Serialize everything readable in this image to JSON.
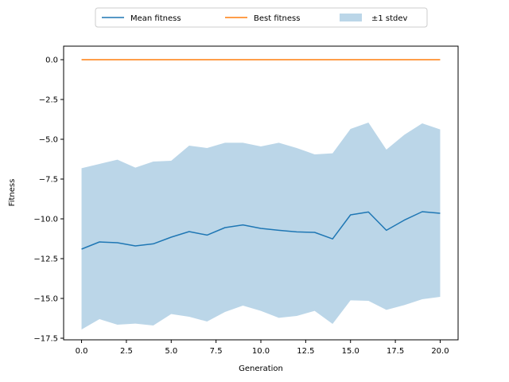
{
  "chart_data": {
    "type": "line",
    "title": "",
    "xlabel": "Generation",
    "ylabel": "Fitness",
    "xlim": [
      -1,
      21
    ],
    "ylim": [
      -17.6,
      0.85
    ],
    "grid": false,
    "legend_placement": "top-center (above plot)",
    "x_ticks": [
      0.0,
      2.5,
      5.0,
      7.5,
      10.0,
      12.5,
      15.0,
      17.5,
      20.0
    ],
    "x_tick_labels": [
      "0.0",
      "2.5",
      "5.0",
      "7.5",
      "10.0",
      "12.5",
      "15.0",
      "17.5",
      "20.0"
    ],
    "y_ticks": [
      0.0,
      -2.5,
      -5.0,
      -7.5,
      -10.0,
      -12.5,
      -15.0,
      -17.5
    ],
    "y_tick_labels": [
      "0.0",
      "−2.5",
      "−5.0",
      "−7.5",
      "−10.0",
      "−12.5",
      "−15.0",
      "−17.5"
    ],
    "x": [
      0,
      1,
      2,
      3,
      4,
      5,
      6,
      7,
      8,
      9,
      10,
      11,
      12,
      13,
      14,
      15,
      16,
      17,
      18,
      19,
      20
    ],
    "series": [
      {
        "name": "Mean fitness",
        "color": "#1f77b4",
        "values": [
          -11.9,
          -11.45,
          -11.5,
          -11.7,
          -11.57,
          -11.15,
          -10.8,
          -11.02,
          -10.55,
          -10.38,
          -10.6,
          -10.72,
          -10.82,
          -10.85,
          -11.26,
          -9.75,
          -9.57,
          -10.72,
          -10.08,
          -9.55,
          -9.65
        ]
      },
      {
        "name": "Best fitness",
        "color": "#ff7f0e",
        "values": [
          0,
          0,
          0,
          0,
          0,
          0,
          0,
          0,
          0,
          0,
          0,
          0,
          0,
          0,
          0,
          0,
          0,
          0,
          0,
          0,
          0
        ]
      }
    ],
    "band": {
      "name": "±1 stdev",
      "color": "#1f77b4",
      "opacity": 0.3,
      "upper": [
        -6.82,
        -6.55,
        -6.28,
        -6.78,
        -6.4,
        -6.35,
        -5.4,
        -5.55,
        -5.22,
        -5.22,
        -5.45,
        -5.22,
        -5.55,
        -5.95,
        -5.88,
        -4.35,
        -3.95,
        -5.65,
        -4.72,
        -4.0,
        -4.38
      ],
      "lower": [
        -16.95,
        -16.3,
        -16.65,
        -16.58,
        -16.7,
        -15.98,
        -16.15,
        -16.45,
        -15.85,
        -15.45,
        -15.78,
        -16.22,
        -16.1,
        -15.78,
        -16.6,
        -15.12,
        -15.15,
        -15.72,
        -15.42,
        -15.05,
        -14.9
      ]
    }
  }
}
